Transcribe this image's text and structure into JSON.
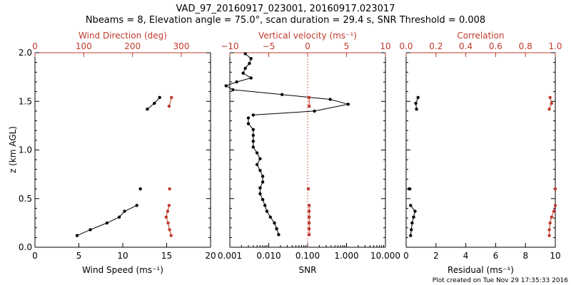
{
  "title_line1": "VAD_97_20160917_023001, 20160917.023017",
  "title_line2": "Nbeams = 8, Elevation angle = 75.0°, scan duration = 29.4 s, SNR Threshold = 0.008",
  "footer": "Plot created on Tue Nov 29 17:35:33 2016",
  "colors": {
    "primary": "#000000",
    "secondary": "#c0392b"
  },
  "chart_data": [
    {
      "type": "scatter",
      "ylabel": "z (km AGL)",
      "ylim": [
        0,
        2
      ],
      "yticks": [
        "0.0",
        "0.5",
        "1.0",
        "1.5",
        "2.0"
      ],
      "xlabel": "Wind Speed (ms⁻¹)",
      "xlim": [
        0,
        20
      ],
      "xticks": [
        "0",
        "5",
        "10",
        "15",
        "20"
      ],
      "x2label": "Wind Direction (deg)",
      "x2lim": [
        0,
        360
      ],
      "x2ticks": [
        "0",
        "100",
        "200",
        "300"
      ],
      "series": [
        {
          "axis": "bottom",
          "color": "black",
          "x": [
            4.8,
            6.3,
            8.2,
            9.6,
            10.2,
            11.6
          ],
          "y": [
            0.12,
            0.18,
            0.25,
            0.31,
            0.37,
            0.43
          ],
          "segments": [
            [
              0,
              5
            ]
          ]
        },
        {
          "axis": "bottom",
          "color": "black",
          "x": [
            12.0
          ],
          "y": [
            0.6
          ],
          "segments": []
        },
        {
          "axis": "bottom",
          "color": "black",
          "x": [
            12.8,
            13.6,
            14.2
          ],
          "y": [
            1.42,
            1.48,
            1.54
          ],
          "segments": [
            [
              0,
              2
            ]
          ]
        },
        {
          "axis": "top",
          "color": "red",
          "x": [
            279,
            276,
            273,
            269,
            272,
            275,
            276,
            275,
            280
          ],
          "y": [
            0.12,
            0.18,
            0.25,
            0.31,
            0.37,
            0.43,
            0.6,
            1.45,
            1.54
          ],
          "segments": [
            [
              0,
              5
            ],
            [
              7,
              8
            ]
          ]
        }
      ]
    },
    {
      "type": "line",
      "xlabel": "SNR",
      "xscale": "log",
      "xlim": [
        0.001,
        10
      ],
      "xticks": [
        "0.001",
        "0.010",
        "0.100",
        "1.000",
        "10.000"
      ],
      "x2label": "Vertical velocity (ms⁻¹)",
      "x2lim": [
        -10,
        10
      ],
      "x2ticks": [
        "−10",
        "−5",
        "0",
        "5",
        "10"
      ],
      "zero_line": 0,
      "series": [
        {
          "axis": "bottom",
          "color": "black",
          "x": [
            0.018,
            0.016,
            0.014,
            0.011,
            0.009,
            0.008,
            0.007,
            0.006,
            0.006,
            0.007,
            0.007,
            0.006,
            0.005,
            0.006,
            0.005,
            0.004,
            0.004,
            0.004,
            0.004,
            0.003,
            0.003
          ],
          "y": [
            0.13,
            0.19,
            0.25,
            0.31,
            0.37,
            0.43,
            0.49,
            0.55,
            0.61,
            0.67,
            0.73,
            0.79,
            0.85,
            0.91,
            0.97,
            1.03,
            1.09,
            1.15,
            1.21,
            1.27,
            1.33
          ],
          "segments": [
            [
              0,
              20
            ]
          ]
        },
        {
          "axis": "bottom",
          "color": "black",
          "x": [
            0.004,
            0.15,
            1.1,
            0.38,
            0.022,
            0.0012,
            0.0008,
            0.0015,
            0.0035,
            0.0022,
            0.0025,
            0.0032,
            0.0035,
            0.0025
          ],
          "y": [
            1.36,
            1.4,
            1.47,
            1.52,
            1.57,
            1.62,
            1.66,
            1.7,
            1.74,
            1.79,
            1.84,
            1.89,
            1.94,
            1.99
          ],
          "segments": [
            [
              0,
              13
            ]
          ]
        },
        {
          "axis": "top",
          "color": "red",
          "x": [
            0.2,
            0.2,
            0.2,
            0.2,
            0.2,
            0.2,
            0.1,
            0.2,
            0.2
          ],
          "y": [
            0.13,
            0.19,
            0.25,
            0.31,
            0.37,
            0.43,
            0.6,
            1.45,
            1.54
          ],
          "segments": [
            [
              0,
              5
            ],
            [
              7,
              8
            ]
          ]
        }
      ]
    },
    {
      "type": "scatter",
      "xlabel": "Residual (ms⁻¹)",
      "xlim": [
        0,
        10
      ],
      "xticks": [
        "0",
        "2",
        "4",
        "6",
        "8",
        "10"
      ],
      "x2label": "Correlation",
      "x2lim": [
        0,
        1
      ],
      "x2ticks": [
        "0.0",
        "0.2",
        "0.4",
        "0.6",
        "0.8",
        "1.0"
      ],
      "series": [
        {
          "axis": "bottom",
          "color": "black",
          "x": [
            0.3,
            0.35,
            0.4,
            0.5,
            0.6,
            0.3,
            0.25,
            0.2
          ],
          "y": [
            0.12,
            0.18,
            0.25,
            0.31,
            0.37,
            0.43,
            0.6,
            0.6
          ],
          "segments": [
            [
              0,
              5
            ]
          ]
        },
        {
          "axis": "bottom",
          "color": "black",
          "x": [
            0.7,
            0.65,
            0.8
          ],
          "y": [
            1.42,
            1.48,
            1.54
          ],
          "segments": [
            [
              0,
              2
            ]
          ]
        },
        {
          "axis": "top",
          "color": "red",
          "x": [
            0.96,
            0.96,
            0.965,
            0.975,
            0.99,
            1.0,
            1.0
          ],
          "y": [
            0.12,
            0.18,
            0.25,
            0.31,
            0.37,
            0.43,
            0.6
          ],
          "segments": [
            [
              0,
              5
            ]
          ]
        },
        {
          "axis": "top",
          "color": "red",
          "x": [
            0.96,
            0.975,
            0.965
          ],
          "y": [
            1.42,
            1.48,
            1.54
          ],
          "segments": [
            [
              0,
              2
            ]
          ]
        }
      ]
    }
  ]
}
